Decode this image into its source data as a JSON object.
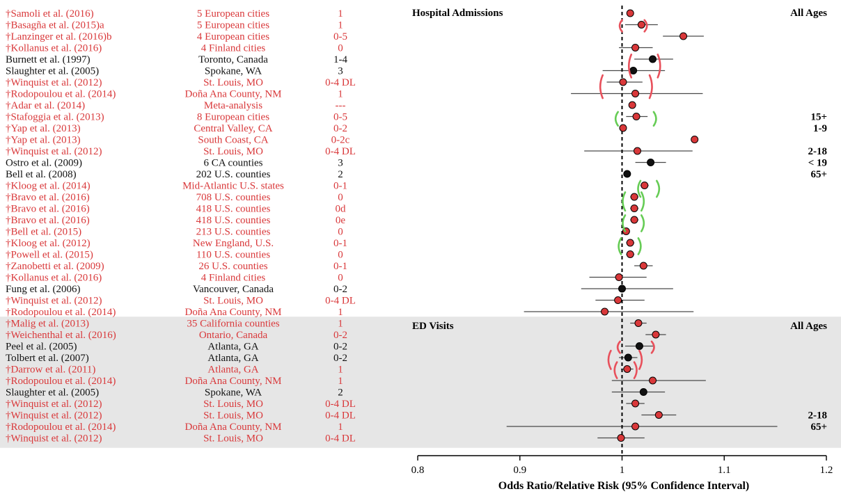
{
  "colors": {
    "red": "#d9383a",
    "black": "#111111",
    "ed_band": "#e6e6e6",
    "ci_line": "#4a4a4a",
    "green_bracket": "#66cc55",
    "red_bracket": "#e8505b"
  },
  "chart_data": {
    "type": "forest",
    "xlabel": "Odds Ratio/Relative  Risk (95% Confidence Interval)",
    "xlim": [
      0.8,
      1.2
    ],
    "xticks": [
      0.8,
      0.9,
      1.0,
      1.1,
      1.2
    ],
    "xtick_labels": [
      "0.8",
      "0.9",
      "1",
      "1.1",
      "1.2"
    ],
    "reference_line": 1.0,
    "panels": [
      {
        "title": "Hospital Admissions",
        "age_label": "All Ages",
        "shaded": false
      },
      {
        "title": "ED Visits",
        "age_label": "All Ages",
        "shaded": true
      }
    ],
    "rows": [
      {
        "study": "†Samoli et al. (2016)",
        "location": "5 European cities",
        "lag": "1",
        "or": 1.008,
        "lo": 1.006,
        "hi": 1.01,
        "color": "red",
        "group": "hosp"
      },
      {
        "study": "†Basagña et al. (2015)a",
        "location": "5 European cities",
        "lag": "1",
        "or": 1.019,
        "lo": 1.003,
        "hi": 1.035,
        "color": "red",
        "group": "hosp"
      },
      {
        "study": "†Lanzinger et al. (2016)b",
        "location": "4 European cities",
        "lag": "0-5",
        "or": 1.06,
        "lo": 1.04,
        "hi": 1.08,
        "color": "red",
        "group": "hosp"
      },
      {
        "study": "†Kollanus et al. (2016)",
        "location": "4 Finland cities",
        "lag": "0",
        "or": 1.013,
        "lo": 0.997,
        "hi": 1.03,
        "color": "red",
        "group": "hosp"
      },
      {
        "study": "Burnett et al. (1997)",
        "location": "Toronto, Canada",
        "lag": "1-4",
        "or": 1.03,
        "lo": 1.012,
        "hi": 1.05,
        "color": "black",
        "group": "hosp"
      },
      {
        "study": "Slaughter et al. (2005)",
        "location": "Spokane, WA",
        "lag": "3",
        "or": 1.011,
        "lo": 0.981,
        "hi": 1.042,
        "color": "black",
        "group": "hosp"
      },
      {
        "study": "†Winquist et al. (2012)",
        "location": "St. Louis, MO",
        "lag": "0-4 DL",
        "or": 1.001,
        "lo": 0.985,
        "hi": 1.02,
        "color": "red",
        "group": "hosp"
      },
      {
        "study": "†Rodopoulou et al. (2014)",
        "location": "Doña Ana County, NM",
        "lag": "1",
        "or": 1.013,
        "lo": 0.95,
        "hi": 1.079,
        "color": "red",
        "group": "hosp"
      },
      {
        "study": "†Adar et al. (2014)",
        "location": "Meta-analysis",
        "lag": "---",
        "or": 1.01,
        "lo": 1.008,
        "hi": 1.013,
        "color": "red",
        "group": "hosp"
      },
      {
        "study": "†Stafoggia et al. (2013)",
        "location": "8 European cities",
        "lag": "0-5",
        "or": 1.014,
        "lo": 1.004,
        "hi": 1.025,
        "color": "red",
        "group": "hosp"
      },
      {
        "study": "†Yap et al. (2013)",
        "location": "Central Valley, CA",
        "lag": "0-2",
        "or": 1.001,
        "lo": 0.999,
        "hi": 1.003,
        "color": "red",
        "group": "hosp"
      },
      {
        "study": "†Yap et al. (2013)",
        "location": "South Coast, CA",
        "lag": "0-2c",
        "or": 1.071,
        "lo": 1.069,
        "hi": 1.073,
        "color": "red",
        "group": "hosp"
      },
      {
        "study": "†Winquist et al. (2012)",
        "location": "St. Louis, MO",
        "lag": "0-4 DL",
        "or": 1.015,
        "lo": 0.963,
        "hi": 1.069,
        "color": "red",
        "group": "hosp"
      },
      {
        "study": "Ostro et al. (2009)",
        "location": "6 CA counties",
        "lag": "3",
        "or": 1.028,
        "lo": 1.013,
        "hi": 1.043,
        "color": "black",
        "group": "hosp"
      },
      {
        "study": "Bell et al. (2008)",
        "location": "202 U.S. counties",
        "lag": "2",
        "or": 1.005,
        "lo": 1.002,
        "hi": 1.008,
        "color": "black",
        "group": "hosp"
      },
      {
        "study": "†Kloog et al. (2014)",
        "location": "Mid-Atlantic U.S. states",
        "lag": "0-1",
        "or": 1.022,
        "lo": 1.018,
        "hi": 1.026,
        "color": "red",
        "group": "hosp"
      },
      {
        "study": "†Bravo et al. (2016)",
        "location": "708 U.S. counties",
        "lag": "0",
        "or": 1.012,
        "lo": 1.008,
        "hi": 1.016,
        "color": "red",
        "group": "hosp"
      },
      {
        "study": "†Bravo et al. (2016)",
        "location": "418 U.S. counties",
        "lag": "0d",
        "or": 1.012,
        "lo": 1.008,
        "hi": 1.016,
        "color": "red",
        "group": "hosp"
      },
      {
        "study": "†Bravo et al. (2016)",
        "location": "418 U.S. counties",
        "lag": "0e",
        "or": 1.012,
        "lo": 1.008,
        "hi": 1.016,
        "color": "red",
        "group": "hosp"
      },
      {
        "study": "†Bell et al. (2015)",
        "location": "213 U.S. counties",
        "lag": "0",
        "or": 1.004,
        "lo": 1.001,
        "hi": 1.007,
        "color": "red",
        "group": "hosp"
      },
      {
        "study": "†Kloog et al. (2012)",
        "location": "New England, U.S.",
        "lag": "0-1",
        "or": 1.008,
        "lo": 1.004,
        "hi": 1.012,
        "color": "red",
        "group": "hosp"
      },
      {
        "study": "†Powell et al. (2015)",
        "location": "110 U.S. counties",
        "lag": "0",
        "or": 1.008,
        "lo": 1.004,
        "hi": 1.012,
        "color": "red",
        "group": "hosp"
      },
      {
        "study": "†Zanobetti et al. (2009)",
        "location": "26 U.S. counties",
        "lag": "0-1",
        "or": 1.021,
        "lo": 1.012,
        "hi": 1.03,
        "color": "red",
        "group": "hosp"
      },
      {
        "study": "†Kollanus et al. (2016)",
        "location": "4 Finland cities",
        "lag": "0",
        "or": 0.997,
        "lo": 0.968,
        "hi": 1.024,
        "color": "red",
        "group": "hosp"
      },
      {
        "study": "Fung et al. (2006)",
        "location": "Vancouver, Canada",
        "lag": "0-2",
        "or": 1.0,
        "lo": 0.96,
        "hi": 1.05,
        "color": "black",
        "group": "hosp"
      },
      {
        "study": "†Winquist et al. (2012)",
        "location": "St. Louis, MO",
        "lag": "0-4 DL",
        "or": 0.996,
        "lo": 0.974,
        "hi": 1.022,
        "color": "red",
        "group": "hosp"
      },
      {
        "study": "†Rodopoulou et al. (2014)",
        "location": "Doña Ana County, NM",
        "lag": "1",
        "or": 0.983,
        "lo": 0.904,
        "hi": 1.07,
        "color": "red",
        "group": "hosp"
      },
      {
        "study": "†Malig et al. (2013)",
        "location": "35 California counties",
        "lag": "1",
        "or": 1.016,
        "lo": 1.008,
        "hi": 1.024,
        "color": "red",
        "group": "ed"
      },
      {
        "study": "†Weichenthal et al. (2016)",
        "location": "Ontario, Canada",
        "lag": "0-2",
        "or": 1.033,
        "lo": 1.023,
        "hi": 1.043,
        "color": "red",
        "group": "ed"
      },
      {
        "study": "Peel et al. (2005)",
        "location": "Atlanta, GA",
        "lag": "0-2",
        "or": 1.017,
        "lo": 1.003,
        "hi": 1.031,
        "color": "black",
        "group": "ed"
      },
      {
        "study": "Tolbert et al. (2007)",
        "location": "Atlanta, GA",
        "lag": "0-2",
        "or": 1.006,
        "lo": 0.997,
        "hi": 1.015,
        "color": "black",
        "group": "ed"
      },
      {
        "study": "†Darrow et al. (2011)",
        "location": "Atlanta, GA",
        "lag": "1",
        "or": 1.005,
        "lo": 0.999,
        "hi": 1.011,
        "color": "red",
        "group": "ed"
      },
      {
        "study": "†Rodopoulou et al. (2014)",
        "location": "Doña Ana County, NM",
        "lag": "1",
        "or": 1.03,
        "lo": 0.99,
        "hi": 1.082,
        "color": "red",
        "group": "ed"
      },
      {
        "study": "Slaughter et al. (2005)",
        "location": "Spokane, WA",
        "lag": "2",
        "or": 1.021,
        "lo": 0.99,
        "hi": 1.042,
        "color": "black",
        "group": "ed"
      },
      {
        "study": "†Winquist et al. (2012)",
        "location": "St. Louis, MO",
        "lag": "0-4 DL",
        "or": 1.013,
        "lo": 1.004,
        "hi": 1.022,
        "color": "red",
        "group": "ed"
      },
      {
        "study": "†Winquist et al. (2012)",
        "location": "St. Louis, MO",
        "lag": "0-4 DL",
        "or": 1.036,
        "lo": 1.019,
        "hi": 1.053,
        "color": "red",
        "group": "ed"
      },
      {
        "study": "†Rodopoulou et al. (2014)",
        "location": "Doña Ana County, NM",
        "lag": "1",
        "or": 1.013,
        "lo": 0.887,
        "hi": 1.152,
        "color": "red",
        "group": "ed"
      },
      {
        "study": "†Winquist et al. (2012)",
        "location": "St. Louis, MO",
        "lag": "0-4 DL",
        "or": 0.999,
        "lo": 0.976,
        "hi": 1.022,
        "color": "red",
        "group": "ed"
      }
    ],
    "subgroup_labels": [
      {
        "row": 9,
        "label": "15+"
      },
      {
        "row": 10,
        "label": "1-9"
      },
      {
        "row": 12,
        "label": "2-18"
      },
      {
        "row": 13,
        "label": "< 19"
      },
      {
        "row": 14,
        "label": "65+"
      },
      {
        "row": 35,
        "label": "2-18"
      },
      {
        "row": 36,
        "label": "65+"
      }
    ],
    "brackets": [
      {
        "color": "red",
        "lo": 0.998,
        "hi": 1.024,
        "rows": [
          0.6,
          1.6
        ]
      },
      {
        "color": "red",
        "lo": 1.007,
        "hi": 1.037,
        "rows": [
          3.6,
          5.6
        ]
      },
      {
        "color": "red",
        "lo": 0.979,
        "hi": 1.029,
        "rows": [
          5.4,
          7.4
        ]
      },
      {
        "color": "green",
        "lo": 0.994,
        "hi": 1.033,
        "rows": [
          8.6,
          9.8
        ]
      },
      {
        "color": "green",
        "lo": 1.016,
        "hi": 1.036,
        "rows": [
          14.6,
          16.0
        ]
      },
      {
        "color": "green",
        "lo": 1.001,
        "hi": 1.021,
        "rows": [
          15.6,
          17.2
        ]
      },
      {
        "color": "green",
        "lo": 1.001,
        "hi": 1.021,
        "rows": [
          17.6,
          19.0
        ]
      },
      {
        "color": "green",
        "lo": 0.997,
        "hi": 1.018,
        "rows": [
          19.6,
          21.0
        ]
      },
      {
        "color": "red",
        "lo": 0.996,
        "hi": 1.031,
        "rows": [
          28.6,
          29.6
        ]
      },
      {
        "color": "red",
        "lo": 0.987,
        "hi": 1.019,
        "rows": [
          29.4,
          31.0
        ]
      },
      {
        "color": "red",
        "lo": 0.993,
        "hi": 1.014,
        "rows": [
          30.4,
          31.8
        ]
      }
    ]
  }
}
